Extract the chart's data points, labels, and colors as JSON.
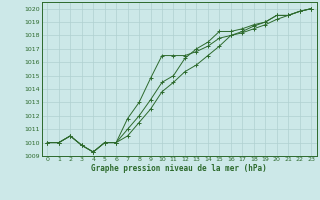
{
  "title": "Graphe pression niveau de la mer (hPa)",
  "background_color": "#cce8e8",
  "grid_color": "#b0d0d0",
  "line_color": "#2d6a2d",
  "xlim": [
    -0.5,
    23.5
  ],
  "ylim": [
    1009,
    1020.5
  ],
  "xticks": [
    0,
    1,
    2,
    3,
    4,
    5,
    6,
    7,
    8,
    9,
    10,
    11,
    12,
    13,
    14,
    15,
    16,
    17,
    18,
    19,
    20,
    21,
    22,
    23
  ],
  "yticks": [
    1009,
    1010,
    1011,
    1012,
    1013,
    1014,
    1015,
    1016,
    1017,
    1018,
    1019,
    1020
  ],
  "series1_solid1": {
    "x": [
      0,
      1,
      2,
      3,
      4,
      5,
      6,
      7,
      8,
      9,
      10,
      11,
      12,
      13,
      14,
      15,
      16,
      17,
      18,
      19,
      20,
      21,
      22,
      23
    ],
    "y": [
      1010.0,
      1010.0,
      1010.5,
      1009.8,
      1009.3,
      1010.0,
      1010.0,
      1011.0,
      1012.0,
      1013.2,
      1014.5,
      1015.0,
      1016.3,
      1017.0,
      1017.5,
      1018.3,
      1018.3,
      1018.5,
      1018.8,
      1019.0,
      1019.5,
      1019.5,
      1019.8,
      1020.0
    ]
  },
  "series2_dotted": {
    "x": [
      0,
      1,
      2,
      3,
      4,
      5,
      6,
      7,
      8,
      9,
      10,
      11,
      12,
      13,
      14,
      15,
      16,
      17,
      18,
      19,
      20,
      21,
      22,
      23
    ],
    "y": [
      1010.0,
      1010.0,
      1010.5,
      1009.8,
      1009.3,
      1010.0,
      1010.0,
      1011.8,
      1013.0,
      1014.8,
      1016.5,
      1016.5,
      1016.5,
      1016.8,
      1017.2,
      1017.8,
      1018.0,
      1018.2,
      1018.5,
      1018.8,
      1019.2,
      1019.5,
      1019.8,
      1020.0
    ]
  },
  "series3_solid2": {
    "x": [
      0,
      1,
      2,
      3,
      4,
      5,
      6,
      7,
      8,
      9,
      10,
      11,
      12,
      13,
      14,
      15,
      16,
      17,
      18,
      19,
      20,
      21,
      22,
      23
    ],
    "y": [
      1010.0,
      1010.0,
      1010.5,
      1009.8,
      1009.3,
      1010.0,
      1010.0,
      1010.5,
      1011.5,
      1012.5,
      1013.8,
      1014.5,
      1015.3,
      1015.8,
      1016.5,
      1017.2,
      1018.0,
      1018.3,
      1018.7,
      1019.0,
      1019.5,
      1019.5,
      1019.8,
      1020.0
    ]
  }
}
